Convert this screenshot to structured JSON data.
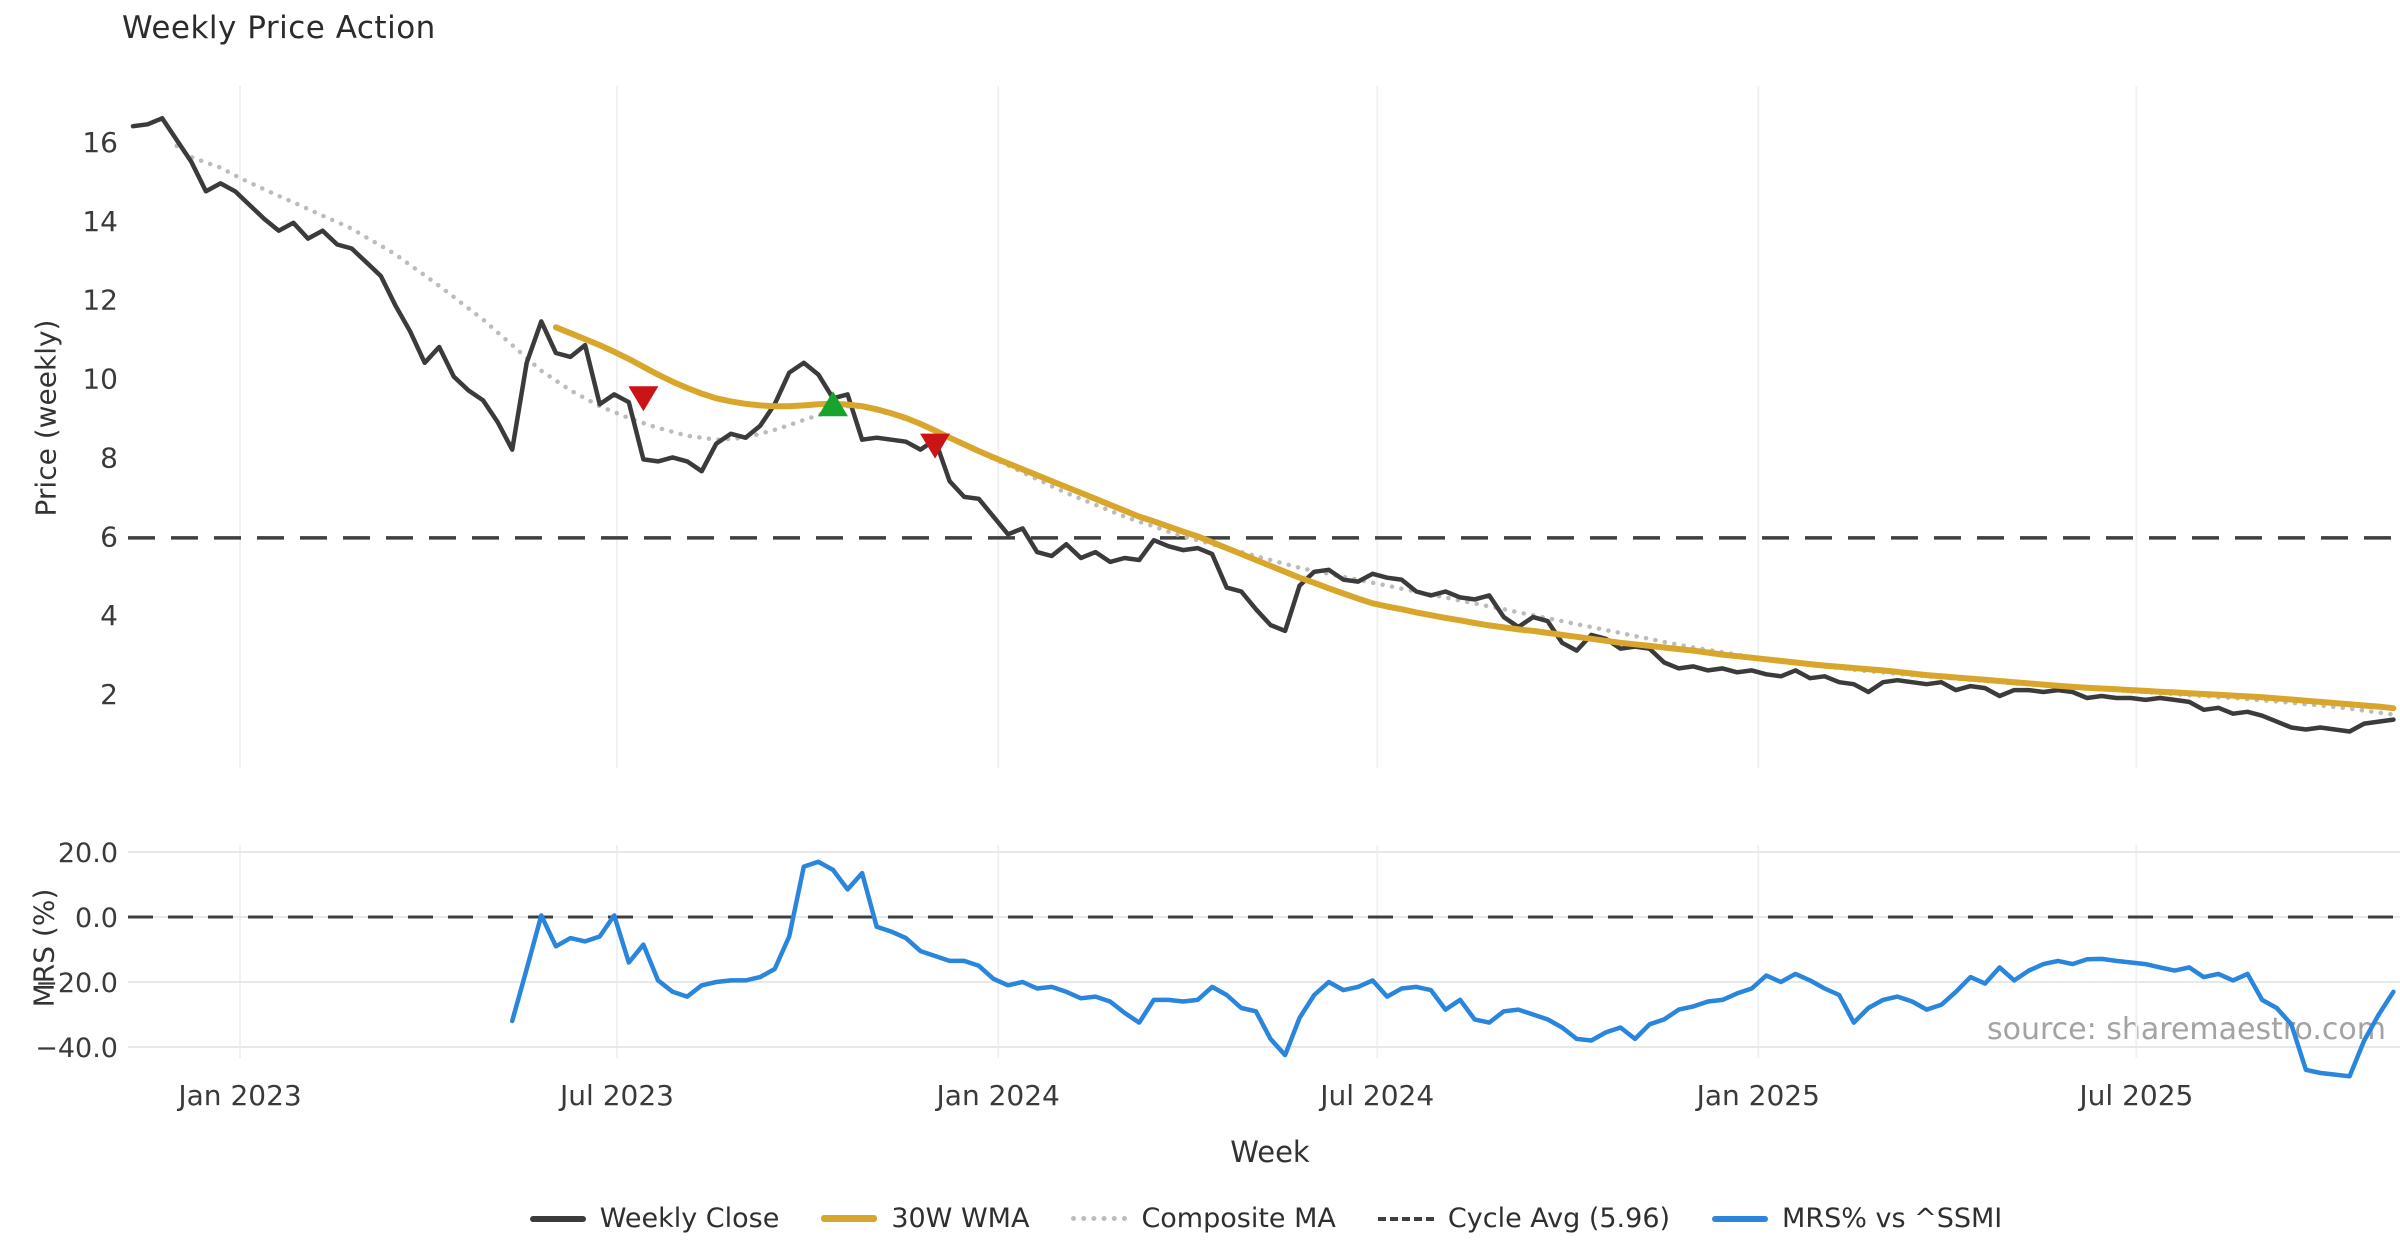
{
  "title": "Weekly Price Action",
  "source_text": "source: sharemaestro.com",
  "colors": {
    "weekly_close": "#3b3b3b",
    "wma_30w": "#d9a62c",
    "composite_ma": "#bcbcbc",
    "cycle_avg": "#3f3f3f",
    "mrs": "#2a85dc",
    "marker_up": "#17a32c",
    "marker_down": "#cc1417",
    "grid_h": "#e8e8e8",
    "grid_v": "#eef1f5",
    "tick_text": "#3a3a3a"
  },
  "legend": {
    "items": [
      {
        "label": "Weekly Close"
      },
      {
        "label": "30W WMA"
      },
      {
        "label": "Composite MA"
      },
      {
        "label": "Cycle Avg (5.96)"
      },
      {
        "label": "MRS% vs ^SSMI"
      }
    ]
  },
  "axes": {
    "top": {
      "ylabel": "Price (weekly)",
      "yticks": [
        16,
        14,
        12,
        10,
        8,
        6,
        4,
        2
      ]
    },
    "bottom": {
      "ylabel": "MRS (%)",
      "yticks": [
        {
          "v": 20,
          "label": "20.0"
        },
        {
          "v": 0,
          "label": "0.0"
        },
        {
          "v": -20,
          "label": "−20.0"
        },
        {
          "v": -40,
          "label": "−40.0"
        }
      ]
    },
    "x": {
      "label": "Week",
      "ticks": [
        {
          "label": "Jan 2023",
          "week": 7.34
        },
        {
          "label": "Jul 2023",
          "week": 33.19
        },
        {
          "label": "Jan 2024",
          "week": 59.33
        },
        {
          "label": "Jul 2024",
          "week": 85.32
        },
        {
          "label": "Jan 2025",
          "week": 111.45
        },
        {
          "label": "Jul 2025",
          "week": 137.38
        }
      ]
    }
  },
  "chart_data": {
    "type": "line",
    "x_unit": "week",
    "x_tick_labels": [
      "Jan 2023",
      "Jul 2023",
      "Jan 2024",
      "Jul 2024",
      "Jan 2025",
      "Jul 2025"
    ],
    "top_panel": {
      "ylabel": "Price (weekly)",
      "ylim": [
        0.9,
        17.4
      ],
      "cycle_avg": 5.96,
      "series": [
        {
          "name": "Weekly Close",
          "start_week": 0,
          "values": [
            16.4,
            16.45,
            16.6,
            16.05,
            15.5,
            14.75,
            14.95,
            14.75,
            14.4,
            14.05,
            13.75,
            13.95,
            13.55,
            13.75,
            13.4,
            13.3,
            12.95,
            12.6,
            11.85,
            11.2,
            10.4,
            10.8,
            10.05,
            9.7,
            9.45,
            8.9,
            8.2,
            10.4,
            11.45,
            10.65,
            10.55,
            10.85,
            9.35,
            9.6,
            9.4,
            7.95,
            7.9,
            8.0,
            7.9,
            7.65,
            8.35,
            8.6,
            8.5,
            8.8,
            9.35,
            10.15,
            10.4,
            10.1,
            9.5,
            9.6,
            8.45,
            8.5,
            8.45,
            8.4,
            8.2,
            8.45,
            7.4,
            7.0,
            6.95,
            6.5,
            6.05,
            6.2,
            5.6,
            5.5,
            5.8,
            5.45,
            5.6,
            5.35,
            5.45,
            5.4,
            5.9,
            5.75,
            5.65,
            5.7,
            5.55,
            4.7,
            4.6,
            4.15,
            3.75,
            3.6,
            4.75,
            5.1,
            5.15,
            4.9,
            4.85,
            5.05,
            4.95,
            4.9,
            4.6,
            4.5,
            4.6,
            4.45,
            4.4,
            4.5,
            3.95,
            3.7,
            3.95,
            3.85,
            3.3,
            3.1,
            3.5,
            3.4,
            3.15,
            3.2,
            3.15,
            2.8,
            2.65,
            2.7,
            2.6,
            2.65,
            2.55,
            2.6,
            2.5,
            2.45,
            2.6,
            2.4,
            2.45,
            2.3,
            2.25,
            2.05,
            2.3,
            2.35,
            2.3,
            2.25,
            2.3,
            2.1,
            2.2,
            2.15,
            1.95,
            2.1,
            2.1,
            2.05,
            2.1,
            2.05,
            1.9,
            1.95,
            1.9,
            1.9,
            1.85,
            1.9,
            1.85,
            1.8,
            1.6,
            1.65,
            1.5,
            1.55,
            1.45,
            1.3,
            1.15,
            1.1,
            1.15,
            1.1,
            1.05,
            1.25,
            1.3,
            1.35
          ]
        },
        {
          "name": "30W WMA",
          "start_week": 29,
          "values": [
            11.3,
            11.15,
            11.0,
            10.85,
            10.68,
            10.5,
            10.3,
            10.1,
            9.92,
            9.76,
            9.62,
            9.5,
            9.42,
            9.36,
            9.32,
            9.3,
            9.3,
            9.32,
            9.35,
            9.36,
            9.34,
            9.3,
            9.22,
            9.12,
            9.0,
            8.85,
            8.68,
            8.5,
            8.33,
            8.16,
            8.0,
            7.85,
            7.7,
            7.55,
            7.4,
            7.25,
            7.1,
            6.95,
            6.8,
            6.65,
            6.5,
            6.38,
            6.25,
            6.12,
            6.0,
            5.85,
            5.7,
            5.55,
            5.4,
            5.25,
            5.1,
            4.95,
            4.82,
            4.68,
            4.55,
            4.42,
            4.3,
            4.22,
            4.15,
            4.07,
            4.0,
            3.93,
            3.87,
            3.8,
            3.74,
            3.69,
            3.64,
            3.6,
            3.55,
            3.5,
            3.45,
            3.4,
            3.35,
            3.3,
            3.26,
            3.22,
            3.18,
            3.14,
            3.1,
            3.05,
            3.0,
            2.96,
            2.92,
            2.88,
            2.84,
            2.8,
            2.76,
            2.72,
            2.69,
            2.66,
            2.63,
            2.6,
            2.56,
            2.52,
            2.48,
            2.45,
            2.42,
            2.39,
            2.36,
            2.33,
            2.3,
            2.27,
            2.24,
            2.21,
            2.18,
            2.16,
            2.14,
            2.12,
            2.1,
            2.08,
            2.06,
            2.04,
            2.02,
            2.0,
            1.98,
            1.96,
            1.94,
            1.92,
            1.89,
            1.86,
            1.83,
            1.8,
            1.77,
            1.74,
            1.71,
            1.68,
            1.64
          ]
        },
        {
          "name": "Composite MA",
          "start_week": 3,
          "values": [
            15.9,
            15.62,
            15.48,
            15.35,
            15.15,
            14.97,
            14.8,
            14.63,
            14.47,
            14.3,
            14.13,
            13.97,
            13.8,
            13.58,
            13.37,
            13.15,
            12.88,
            12.62,
            12.35,
            12.07,
            11.78,
            11.5,
            11.17,
            10.85,
            10.52,
            10.2,
            9.95,
            9.7,
            9.5,
            9.3,
            9.15,
            9.0,
            8.87,
            8.75,
            8.65,
            8.55,
            8.5,
            8.45,
            8.47,
            8.5,
            8.6,
            8.7,
            8.82,
            8.95,
            9.07,
            9.2,
            9.3,
            9.28,
            9.19,
            9.1,
            8.97,
            8.85,
            8.67,
            8.5,
            8.32,
            8.15,
            7.97,
            7.8,
            7.62,
            7.45,
            7.27,
            7.1,
            6.95,
            6.8,
            6.65,
            6.5,
            6.37,
            6.25,
            6.12,
            6.0,
            5.9,
            5.8,
            5.7,
            5.6,
            5.5,
            5.4,
            5.3,
            5.2,
            5.12,
            5.05,
            4.97,
            4.9,
            4.82,
            4.75,
            4.67,
            4.6,
            4.52,
            4.45,
            4.37,
            4.3,
            4.22,
            4.15,
            4.07,
            4.0,
            3.92,
            3.85,
            3.77,
            3.7,
            3.62,
            3.55,
            3.47,
            3.4,
            3.32,
            3.25,
            3.18,
            3.12,
            3.06,
            3.0,
            2.94,
            2.88,
            2.83,
            2.78,
            2.74,
            2.7,
            2.66,
            2.62,
            2.58,
            2.55,
            2.51,
            2.48,
            2.45,
            2.42,
            2.39,
            2.36,
            2.33,
            2.3,
            2.27,
            2.25,
            2.22,
            2.2,
            2.17,
            2.15,
            2.12,
            2.1,
            2.07,
            2.05,
            2.02,
            2.0,
            1.97,
            1.95,
            1.92,
            1.9,
            1.87,
            1.84,
            1.81,
            1.78,
            1.74,
            1.71,
            1.67,
            1.63,
            1.58,
            1.53,
            1.48
          ]
        }
      ],
      "markers": [
        {
          "shape": "triangle-down",
          "week": 35,
          "value": 9.5,
          "color_key": "marker_down"
        },
        {
          "shape": "triangle-up",
          "week": 48,
          "value": 9.35,
          "color_key": "marker_up"
        },
        {
          "shape": "triangle-down",
          "week": 55,
          "value": 8.3,
          "color_key": "marker_down"
        }
      ]
    },
    "bottom_panel": {
      "ylabel": "MRS (%)",
      "ylim": [
        -52,
        25
      ],
      "zero_line": 0,
      "series": [
        {
          "name": "MRS% vs ^SSMI",
          "start_week": 26,
          "values": [
            -32,
            -16,
            0.5,
            -9,
            -6.5,
            -7.5,
            -6,
            0.5,
            -14,
            -8.5,
            -19.5,
            -23,
            -24.5,
            -21,
            -20,
            -19.5,
            -19.5,
            -18.5,
            -16,
            -6,
            15.5,
            17,
            14.5,
            8.5,
            13.5,
            -3,
            -4.5,
            -6.5,
            -10.5,
            -12,
            -13.5,
            -13.5,
            -15,
            -19,
            -21,
            -20,
            -22,
            -21.5,
            -23,
            -25,
            -24.5,
            -26,
            -29.5,
            -32.5,
            -25.5,
            -25.5,
            -26,
            -25.5,
            -21.5,
            -24,
            -28,
            -29,
            -37.5,
            -42.5,
            -31,
            -24,
            -20,
            -22.5,
            -21.5,
            -19.5,
            -24.5,
            -22,
            -21.5,
            -22.5,
            -28.5,
            -25.5,
            -31.5,
            -32.5,
            -29,
            -28.5,
            -30,
            -31.5,
            -34,
            -37.5,
            -38,
            -35.5,
            -34,
            -37.5,
            -33,
            -31.5,
            -28.5,
            -27.5,
            -26,
            -25.5,
            -23.5,
            -22,
            -18,
            -20,
            -17.5,
            -19.5,
            -22,
            -24,
            -32.5,
            -28,
            -25.5,
            -24.5,
            -26,
            -28.5,
            -27,
            -23,
            -18.5,
            -20.5,
            -15.5,
            -19.5,
            -16.5,
            -14.5,
            -13.5,
            -14.5,
            -13,
            -12.9,
            -13.5,
            -14,
            -14.5,
            -15.5,
            -16.5,
            -15.5,
            -18.5,
            -17.5,
            -19.5,
            -17.5,
            -25.5,
            -28,
            -33,
            -47,
            -48,
            -48.5,
            -49,
            -38,
            -30,
            -23
          ]
        }
      ]
    }
  }
}
